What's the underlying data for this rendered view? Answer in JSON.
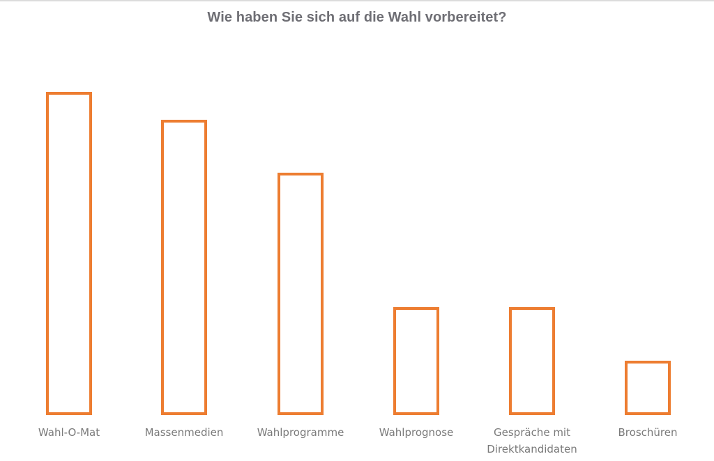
{
  "chart_data": {
    "type": "bar",
    "title": "Wie haben Sie sich auf die Wahl vorbereitet?",
    "xlabel": "",
    "ylabel": "",
    "categories": [
      "Wahl-O-Mat",
      "Massenmedien",
      "Wahlprogramme",
      "Wahlprognose",
      "Gespräche mit Direktkandidaten",
      "Broschüren"
    ],
    "category_label_lines": [
      [
        "Wahl-O-Mat"
      ],
      [
        "Massenmedien"
      ],
      [
        "Wahlprogramme"
      ],
      [
        "Wahlprognose"
      ],
      [
        "Gespräche mit",
        "Direktkandidaten"
      ],
      [
        "Broschüren"
      ]
    ],
    "values": [
      463,
      423,
      347,
      155,
      155,
      78
    ],
    "values_note": "No y-axis or data labels shown; values are relative bar heights in pixels",
    "ylim": [
      0,
      463
    ],
    "grid": false,
    "legend": "none",
    "bar_style": {
      "fill": "#ffffff",
      "stroke": "#ed7d31"
    }
  },
  "colors": {
    "bar_outline": "#ed7d31",
    "title": "#6e6e74",
    "label": "#7a7a7a"
  }
}
